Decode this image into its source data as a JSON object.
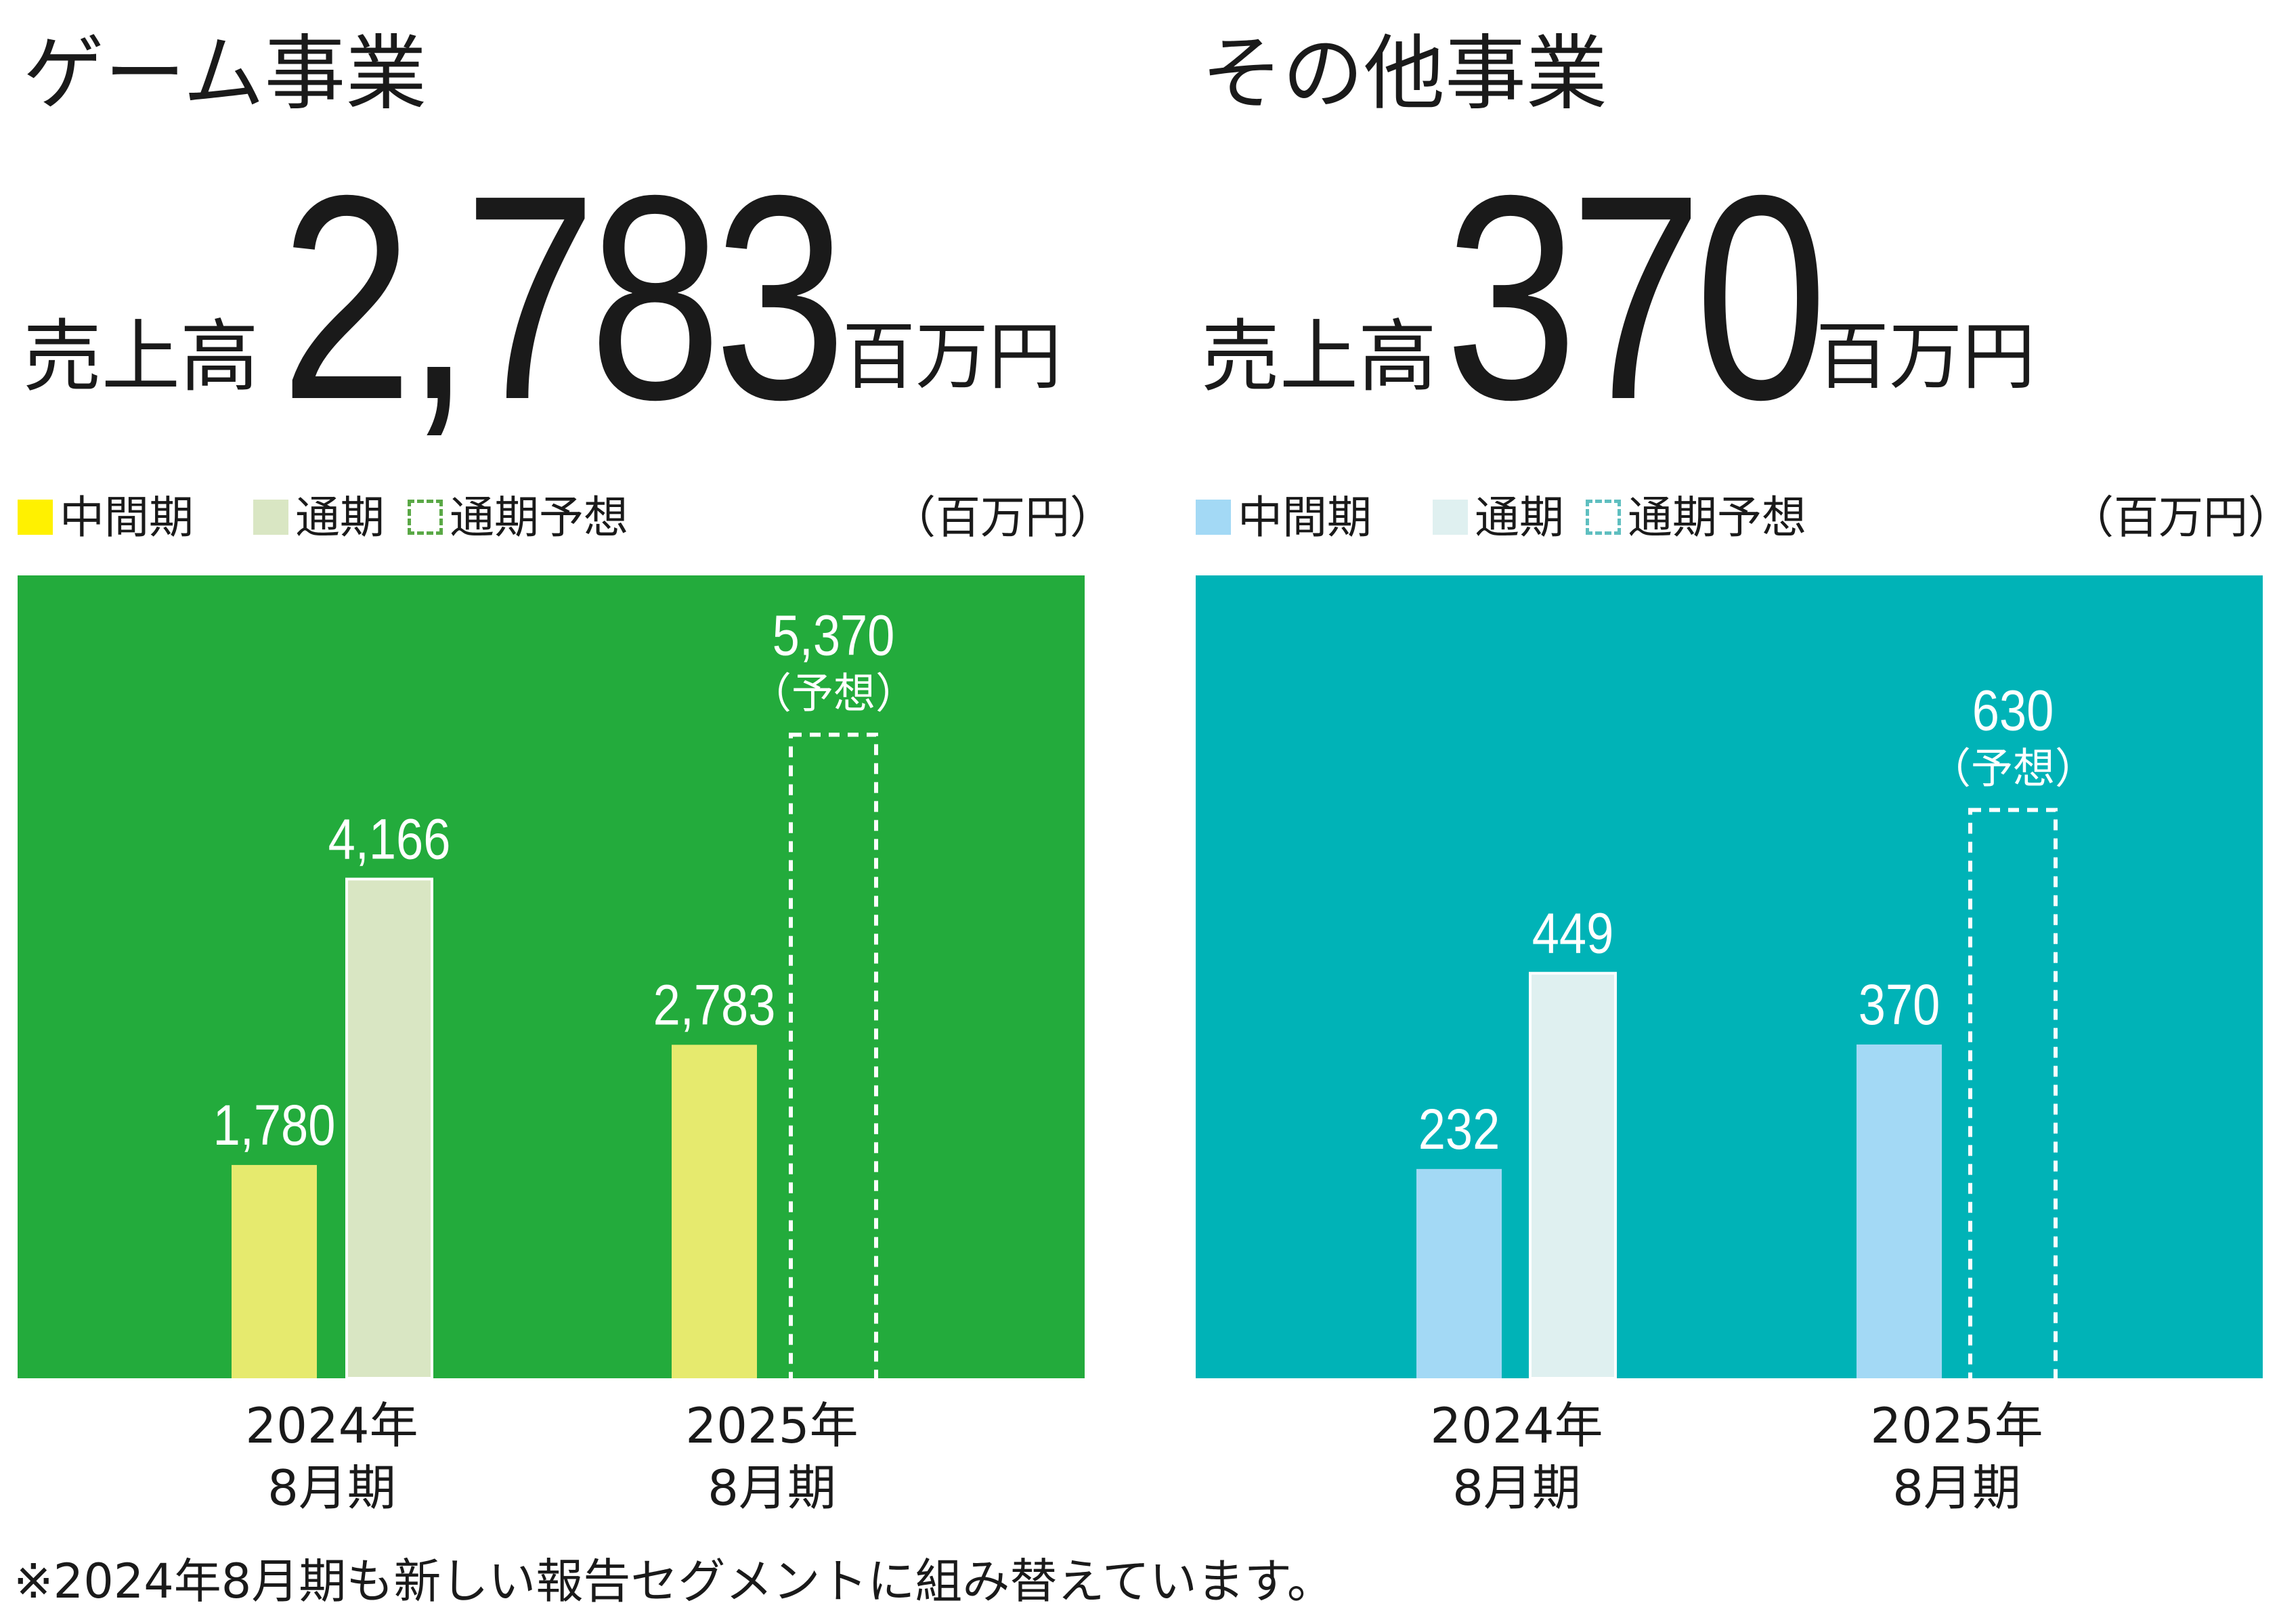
{
  "colors": {
    "game_bg": "#23ab3c",
    "game_interim": "#e6ea6e",
    "game_full": "#d9e6c3",
    "game_legend_interim": "#fff100",
    "game_legend_forecast": "#5aa846",
    "other_bg": "#00b3b7",
    "other_interim": "#a3d9f5",
    "other_full": "#dff0f0",
    "other_legend_forecast": "#5fbfc0"
  },
  "footnote": "※2024年8月期も新しい報告セグメントに組み替えています。",
  "chart_data": [
    {
      "type": "bar",
      "title": "ゲーム事業",
      "headline": {
        "label": "売上高",
        "value": "2,783",
        "unit": "百万円"
      },
      "unit_label": "（百万円）",
      "legend": [
        "中間期",
        "通期",
        "通期予想"
      ],
      "categories": [
        "2024年\n8月期",
        "2025年\n8月期"
      ],
      "category_lines": [
        [
          "2024年",
          "8月期"
        ],
        [
          "2025年",
          "8月期"
        ]
      ],
      "ylim": [
        0,
        6700
      ],
      "series": [
        {
          "name": "中間期",
          "values": [
            1780,
            2783
          ],
          "labels": [
            "1,780",
            "2,783"
          ]
        },
        {
          "name": "通期",
          "values": [
            4166,
            null
          ],
          "labels": [
            "4,166",
            ""
          ]
        },
        {
          "name": "通期予想",
          "values": [
            null,
            5370
          ],
          "labels": [
            "",
            "5,370"
          ],
          "note": "（予想）"
        }
      ]
    },
    {
      "type": "bar",
      "title": "その他事業",
      "headline": {
        "label": "売上高",
        "value": "370",
        "unit": "百万円"
      },
      "unit_label": "（百万円）",
      "legend": [
        "中間期",
        "通期",
        "通期予想"
      ],
      "categories": [
        "2024年\n8月期",
        "2025年\n8月期"
      ],
      "category_lines": [
        [
          "2024年",
          "8月期"
        ],
        [
          "2025年",
          "8月期"
        ]
      ],
      "ylim": [
        0,
        890
      ],
      "series": [
        {
          "name": "中間期",
          "values": [
            232,
            370
          ],
          "labels": [
            "232",
            "370"
          ]
        },
        {
          "name": "通期",
          "values": [
            449,
            null
          ],
          "labels": [
            "449",
            ""
          ]
        },
        {
          "name": "通期予想",
          "values": [
            null,
            630
          ],
          "labels": [
            "",
            "630"
          ],
          "note": "（予想）"
        }
      ]
    }
  ]
}
